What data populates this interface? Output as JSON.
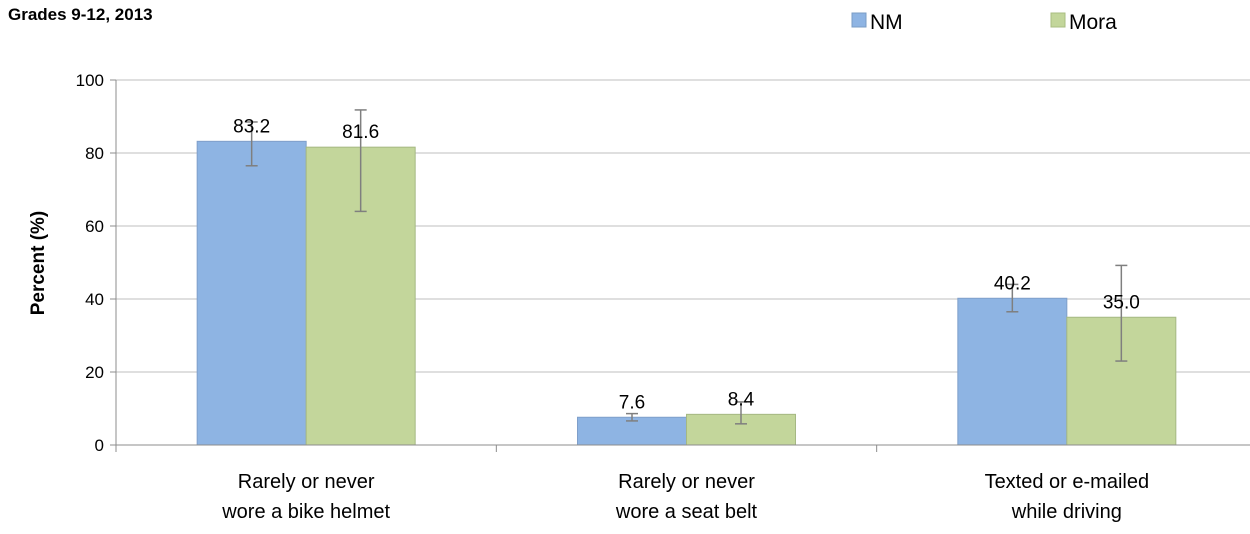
{
  "subtitle": "Grades 9-12, 2013",
  "chart_data": {
    "type": "bar",
    "categories": [
      [
        "Rarely or never",
        "wore a bike helmet"
      ],
      [
        "Rarely or never",
        "wore a seat belt"
      ],
      [
        "Texted or e-mailed",
        "while driving"
      ]
    ],
    "series": [
      {
        "name": "NM",
        "color": "#8eb4e3",
        "values": [
          83.2,
          7.6,
          40.2
        ],
        "value_labels": [
          "83.2",
          "7.6",
          "40.2"
        ],
        "error_low": [
          76.5,
          6.6,
          36.5
        ],
        "error_high": [
          88.5,
          8.6,
          44.0
        ]
      },
      {
        "name": "Mora",
        "color": "#c3d69b",
        "values": [
          81.6,
          8.4,
          35.0
        ],
        "value_labels": [
          "81.6",
          "8.4",
          "35.0"
        ],
        "error_low": [
          64.0,
          5.8,
          23.0
        ],
        "error_high": [
          91.8,
          11.8,
          49.2
        ]
      }
    ],
    "ylabel": "Percent (%)",
    "ylim": [
      0,
      100
    ],
    "yticks": [
      "0",
      "20",
      "40",
      "60",
      "80",
      "100"
    ],
    "grid": true,
    "legend": "top-right"
  }
}
